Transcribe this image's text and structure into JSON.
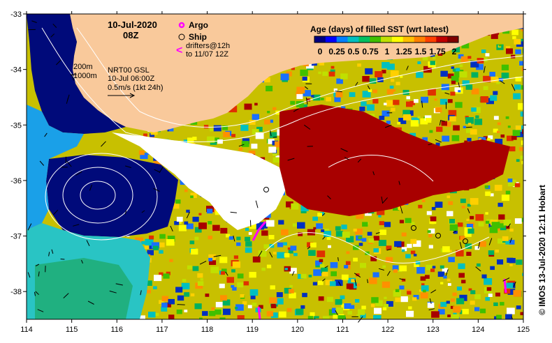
{
  "map": {
    "title_date": "10-Jul-2020",
    "title_time": "08Z",
    "legend": {
      "argo_label": "Argo",
      "ship_label": "Ship",
      "drifters_line1": "drifters@12h",
      "drifters_line2": "to 11/07 12Z",
      "drifters_symbol": "<"
    },
    "contour_labels": {
      "isobath_200": "200m",
      "isobath_1000": "1000m"
    },
    "current_info": {
      "line1": "NRT00 GSL",
      "line2": "10-Jul 06:00Z",
      "line3": "0.5m/s (1kt 24h)"
    },
    "colorbar": {
      "title": "Age (days) of filled SST (wrt latest)",
      "tick_labels": [
        "0",
        "0.25",
        "0.5",
        "0.75",
        "1",
        "1.25",
        "1.5",
        "1.75",
        "2"
      ],
      "colors": [
        "#000080",
        "#0000ff",
        "#0080ff",
        "#00c0c0",
        "#00c060",
        "#40c000",
        "#c0e000",
        "#ffff00",
        "#ffc000",
        "#ff8000",
        "#ff4000",
        "#c00000",
        "#800000"
      ]
    },
    "x_axis": {
      "ticks": [
        114,
        115,
        116,
        117,
        118,
        119,
        120,
        121,
        122,
        123,
        124,
        125
      ],
      "range": [
        114,
        125
      ]
    },
    "y_axis": {
      "ticks": [
        -33,
        -34,
        -35,
        -36,
        -37,
        -38
      ],
      "range": [
        -38.5,
        -33
      ]
    },
    "credit": "© IMOS 13-Jul-2020 12:11 Hobart",
    "colors": {
      "land": "#f9c99b",
      "coast_deep": "#000a7a",
      "no_data": "#ffffff"
    }
  }
}
